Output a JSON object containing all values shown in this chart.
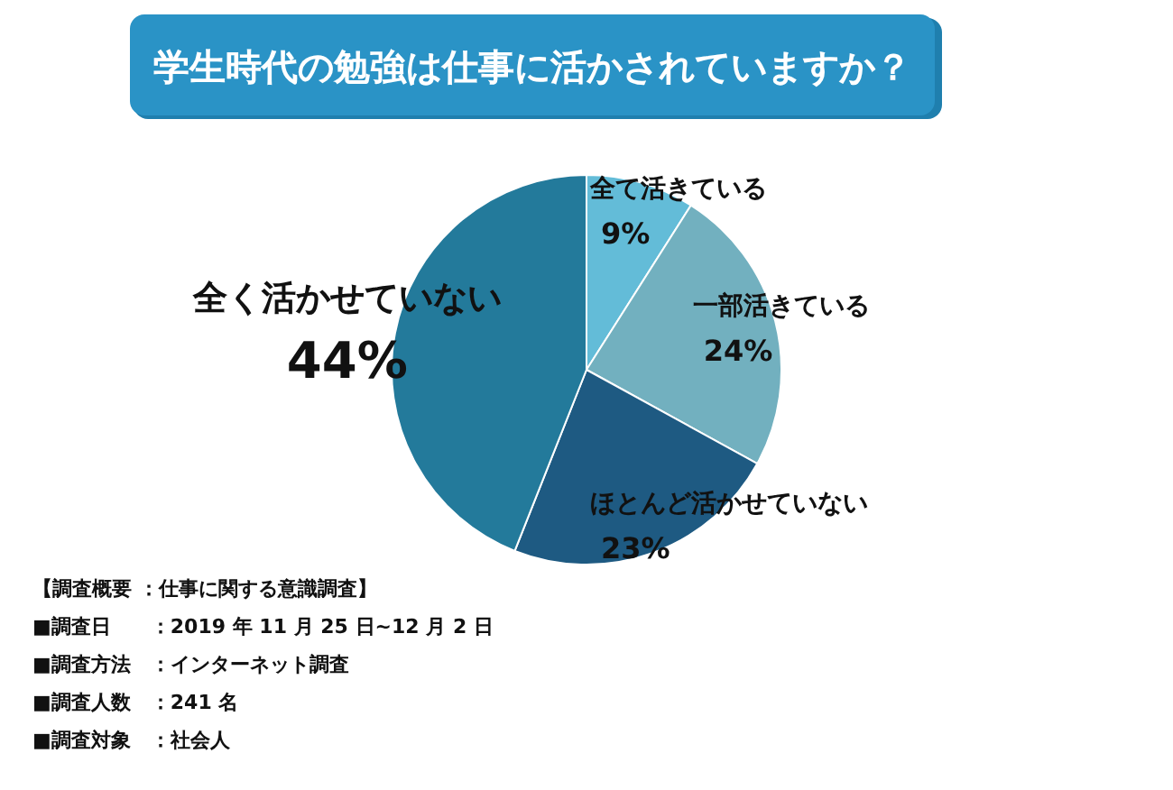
{
  "chart_data": {
    "type": "pie",
    "title": "学生時代の勉強は仕事に活かされていますか？",
    "categories": [
      "全て活きている",
      "一部活きている",
      "ほとんど活かせていない",
      "全く活かせていない"
    ],
    "values": [
      9,
      24,
      23,
      44
    ],
    "colors": [
      "#63bcd8",
      "#72b0bf",
      "#1e5a82",
      "#237a9b"
    ],
    "value_labels": [
      "9%",
      "24%",
      "23%",
      "44%"
    ],
    "annotations": [
      "【調査概要 ：仕事に関する意識調査】",
      "■調査日　　：2019 年 11 月 25 日~12 月 2 日",
      "■調査方法　：インターネット調査",
      "■調査人数　：241 名",
      "■調査対象　：社会人"
    ]
  }
}
